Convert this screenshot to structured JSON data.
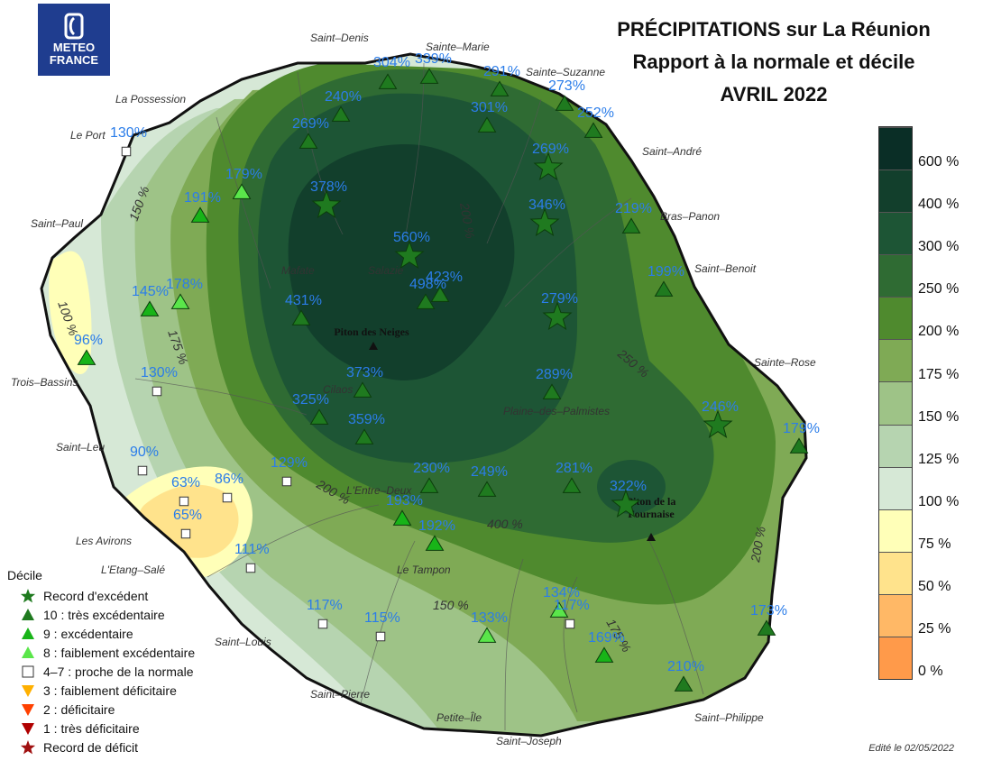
{
  "logo": {
    "line1": "METEO",
    "line2": "FRANCE"
  },
  "title": {
    "line1": "PRÉCIPITATIONS sur La Réunion",
    "line2": "Rapport à la normale et décile",
    "line3": "AVRIL 2022"
  },
  "colors": {
    "ocean": "#ffffff",
    "station_label": "#2b7de9",
    "excedent": "#1f7a1f",
    "excedentaire": "#18b418",
    "faiblement_excedentaire": "#5ae64a",
    "normale": "#ffffff",
    "faiblement_deficitaire": "#ffb000",
    "deficitaire": "#ff4000",
    "tres_deficitaire": "#b00000",
    "record_deficit": "#a01010"
  },
  "colorbar": {
    "labels": [
      "600 %",
      "400 %",
      "300 %",
      "250 %",
      "200 %",
      "175 %",
      "150 %",
      "125 %",
      "100 %",
      "75 %",
      "50 %",
      "25 %",
      "0 %"
    ],
    "colors": [
      "#0a2e26",
      "#123f2c",
      "#1d5535",
      "#2f6b33",
      "#4f8a2e",
      "#7faa55",
      "#9ec387",
      "#b6d4b0",
      "#d6e8d6",
      "#ffffb8",
      "#ffe38c",
      "#ffb866",
      "#ff9a4a"
    ]
  },
  "places": [
    {
      "name": "Saint–Denis"
    },
    {
      "name": "Sainte–Marie"
    },
    {
      "name": "Sainte–Suzanne"
    },
    {
      "name": "La Possession"
    },
    {
      "name": "Le Port"
    },
    {
      "name": "Saint–André"
    },
    {
      "name": "Bras–Panon"
    },
    {
      "name": "Saint–Paul"
    },
    {
      "name": "Saint–Benoit"
    },
    {
      "name": "Mafate"
    },
    {
      "name": "Salazie"
    },
    {
      "name": "Trois–Bassins"
    },
    {
      "name": "Sainte–Rose"
    },
    {
      "name": "Cilaos"
    },
    {
      "name": "Plaine–des–Palmistes"
    },
    {
      "name": "Saint–Leu"
    },
    {
      "name": "L'Entre–Deux"
    },
    {
      "name": "Les Avirons"
    },
    {
      "name": "L'Etang–Salé"
    },
    {
      "name": "Le Tampon"
    },
    {
      "name": "Saint–Louis"
    },
    {
      "name": "Saint–Pierre"
    },
    {
      "name": "Petite–Île"
    },
    {
      "name": "Saint–Joseph"
    },
    {
      "name": "Saint–Philippe"
    }
  ],
  "peaks": [
    {
      "name": "Piton des Neiges",
      "lines": [
        "Piton des Neiges"
      ]
    },
    {
      "name": "Piton de la Fournaise",
      "lines": [
        "Piton de la",
        "Fournaise"
      ]
    }
  ],
  "isolines": [
    "150 %",
    "175 %",
    "100 %",
    "200 %",
    "250 %",
    "150 %",
    "200 %",
    "175 %",
    "200 %",
    "400 %"
  ],
  "stations": [
    {
      "label": "304%",
      "cls": 10
    },
    {
      "label": "339%",
      "cls": 10
    },
    {
      "label": "291%",
      "cls": 10
    },
    {
      "label": "273%",
      "cls": 10
    },
    {
      "label": "240%",
      "cls": 10
    },
    {
      "label": "301%",
      "cls": 10
    },
    {
      "label": "252%",
      "cls": 10
    },
    {
      "label": "269%",
      "cls": 10
    },
    {
      "label": "130%",
      "cls": 5
    },
    {
      "label": "269%",
      "cls": 11
    },
    {
      "label": "179%",
      "cls": 8
    },
    {
      "label": "191%",
      "cls": 9
    },
    {
      "label": "378%",
      "cls": 11
    },
    {
      "label": "346%",
      "cls": 11
    },
    {
      "label": "219%",
      "cls": 10
    },
    {
      "label": "560%",
      "cls": 11
    },
    {
      "label": "145%",
      "cls": 9
    },
    {
      "label": "178%",
      "cls": 8
    },
    {
      "label": "199%",
      "cls": 10
    },
    {
      "label": "423%",
      "cls": 10
    },
    {
      "label": "498%",
      "cls": 10
    },
    {
      "label": "431%",
      "cls": 10
    },
    {
      "label": "279%",
      "cls": 11
    },
    {
      "label": "96%",
      "cls": 9
    },
    {
      "label": "130%",
      "cls": 5
    },
    {
      "label": "373%",
      "cls": 10
    },
    {
      "label": "289%",
      "cls": 10
    },
    {
      "label": "325%",
      "cls": 10
    },
    {
      "label": "359%",
      "cls": 10
    },
    {
      "label": "246%",
      "cls": 11
    },
    {
      "label": "179%",
      "cls": 10
    },
    {
      "label": "90%",
      "cls": 5
    },
    {
      "label": "129%",
      "cls": 5
    },
    {
      "label": "230%",
      "cls": 10
    },
    {
      "label": "249%",
      "cls": 10
    },
    {
      "label": "281%",
      "cls": 10
    },
    {
      "label": "63%",
      "cls": 5
    },
    {
      "label": "86%",
      "cls": 5
    },
    {
      "label": "322%",
      "cls": 11
    },
    {
      "label": "65%",
      "cls": 5
    },
    {
      "label": "193%",
      "cls": 9
    },
    {
      "label": "192%",
      "cls": 9
    },
    {
      "label": "111%",
      "cls": 5
    },
    {
      "label": "117%",
      "cls": 5
    },
    {
      "label": "115%",
      "cls": 5
    },
    {
      "label": "133%",
      "cls": 8
    },
    {
      "label": "134%",
      "cls": 8
    },
    {
      "label": "117%",
      "cls": 5
    },
    {
      "label": "173%",
      "cls": 10
    },
    {
      "label": "169%",
      "cls": 9
    },
    {
      "label": "210%",
      "cls": 10
    }
  ],
  "legend": {
    "title": "Décile",
    "items": [
      {
        "label": "Record d'excédent",
        "shape": "star",
        "color": "#1f7a1f"
      },
      {
        "label": "10 : très excédentaire",
        "shape": "tri-up",
        "color": "#1f7a1f"
      },
      {
        "label": "9 : excédentaire",
        "shape": "tri-up",
        "color": "#18b418"
      },
      {
        "label": "8 : faiblement excédentaire",
        "shape": "tri-up",
        "color": "#5ae64a"
      },
      {
        "label": "4–7 : proche de la normale",
        "shape": "square",
        "color": "#ffffff"
      },
      {
        "label": "3 : faiblement déficitaire",
        "shape": "tri-down",
        "color": "#ffb000"
      },
      {
        "label": "2 : déficitaire",
        "shape": "tri-down",
        "color": "#ff4000"
      },
      {
        "label": "1 : très déficitaire",
        "shape": "tri-down",
        "color": "#b00000"
      },
      {
        "label": "Record de déficit",
        "shape": "star",
        "color": "#a01010"
      }
    ]
  },
  "edited": "Edité le 02/05/2022"
}
